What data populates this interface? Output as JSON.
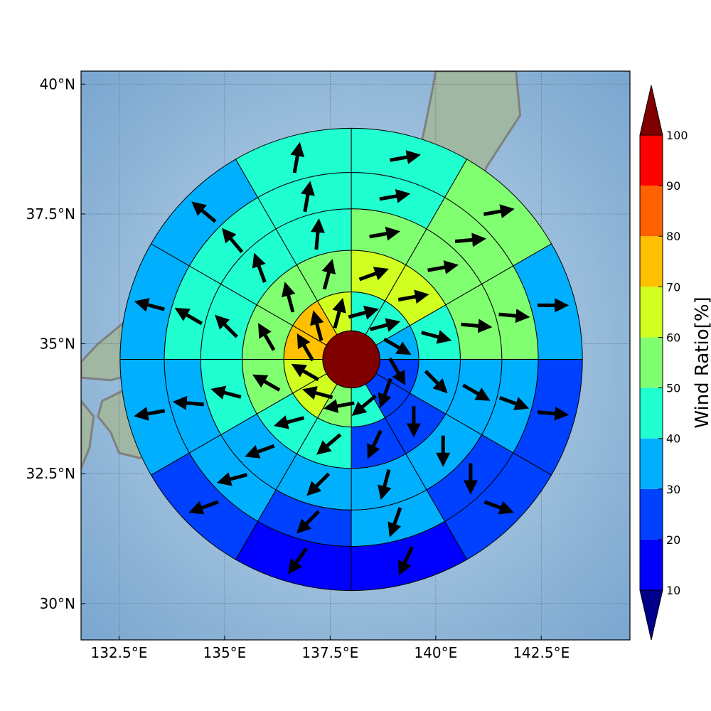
{
  "chart_data": {
    "type": "polar-sector-map",
    "map": {
      "lon_range": [
        131.6,
        144.6
      ],
      "lat_range": [
        29.3,
        40.25
      ],
      "xticks": [
        {
          "value": 132.5,
          "label": "132.5°E"
        },
        {
          "value": 135.0,
          "label": "135°E"
        },
        {
          "value": 137.5,
          "label": "137.5°E"
        },
        {
          "value": 140.0,
          "label": "140°E"
        },
        {
          "value": 142.5,
          "label": "142.5°E"
        }
      ],
      "yticks": [
        {
          "value": 30.0,
          "label": "30°N"
        },
        {
          "value": 32.5,
          "label": "32.5°N"
        },
        {
          "value": 35.0,
          "label": "35°N"
        },
        {
          "value": 37.5,
          "label": "37.5°N"
        },
        {
          "value": 40.0,
          "label": "40°N"
        }
      ],
      "grid": true,
      "ocean_color": "#8cb3d6",
      "land_color": "#9fb7a3",
      "coast_color": "#808080"
    },
    "center": {
      "lon": 138.0,
      "lat": 34.7,
      "value": 100
    },
    "ring_radii_deg": [
      0.55,
      1.3,
      2.1,
      2.9,
      3.6,
      4.45
    ],
    "sectors": 12,
    "sector_start_bearing_deg": 0,
    "sector_step_deg": 30,
    "rings": [
      {
        "values": [
          45,
          40,
          30,
          25,
          25,
          40,
          55,
          65,
          65,
          75,
          75,
          65
        ]
      },
      {
        "values": [
          65,
          60,
          40,
          30,
          20,
          20,
          40,
          45,
          55,
          50,
          55,
          50
        ]
      },
      {
        "values": [
          55,
          55,
          50,
          35,
          30,
          30,
          35,
          35,
          45,
          45,
          45,
          45
        ]
      },
      {
        "values": [
          45,
          55,
          55,
          35,
          20,
          30,
          20,
          30,
          35,
          45,
          45,
          40
        ]
      },
      {
        "values": [
          45,
          55,
          35,
          25,
          20,
          10,
          15,
          20,
          30,
          35,
          35,
          45
        ]
      }
    ],
    "arrows": {
      "rings": [
        {
          "dirs": [
            75,
            75,
            120,
            150,
            200,
            230,
            260,
            285,
            300,
            330,
            345,
            15
          ]
        },
        {
          "dirs": [
            70,
            80,
            105,
            135,
            180,
            205,
            230,
            255,
            300,
            330,
            345,
            15
          ]
        },
        {
          "dirs": [
            80,
            80,
            95,
            120,
            180,
            195,
            225,
            250,
            285,
            315,
            340,
            5
          ]
        },
        {
          "dirs": [
            80,
            85,
            95,
            110,
            180,
            200,
            225,
            255,
            275,
            300,
            320,
            10
          ]
        },
        {
          "dirs": [
            80,
            80,
            90,
            95,
            110,
            205,
            215,
            250,
            260,
            285,
            310,
            10
          ]
        }
      ]
    },
    "colorbar": {
      "label": "Wind Ratio[%]",
      "bounds": [
        10,
        20,
        30,
        40,
        50,
        60,
        70,
        80,
        90,
        100
      ],
      "colors": [
        "#0000ff",
        "#0040ff",
        "#00b0ff",
        "#20ffd0",
        "#80ff70",
        "#d0ff20",
        "#ffc000",
        "#ff6000",
        "#ff0000"
      ],
      "under_color": "#00008b",
      "over_color": "#800000",
      "extend": "both"
    }
  }
}
